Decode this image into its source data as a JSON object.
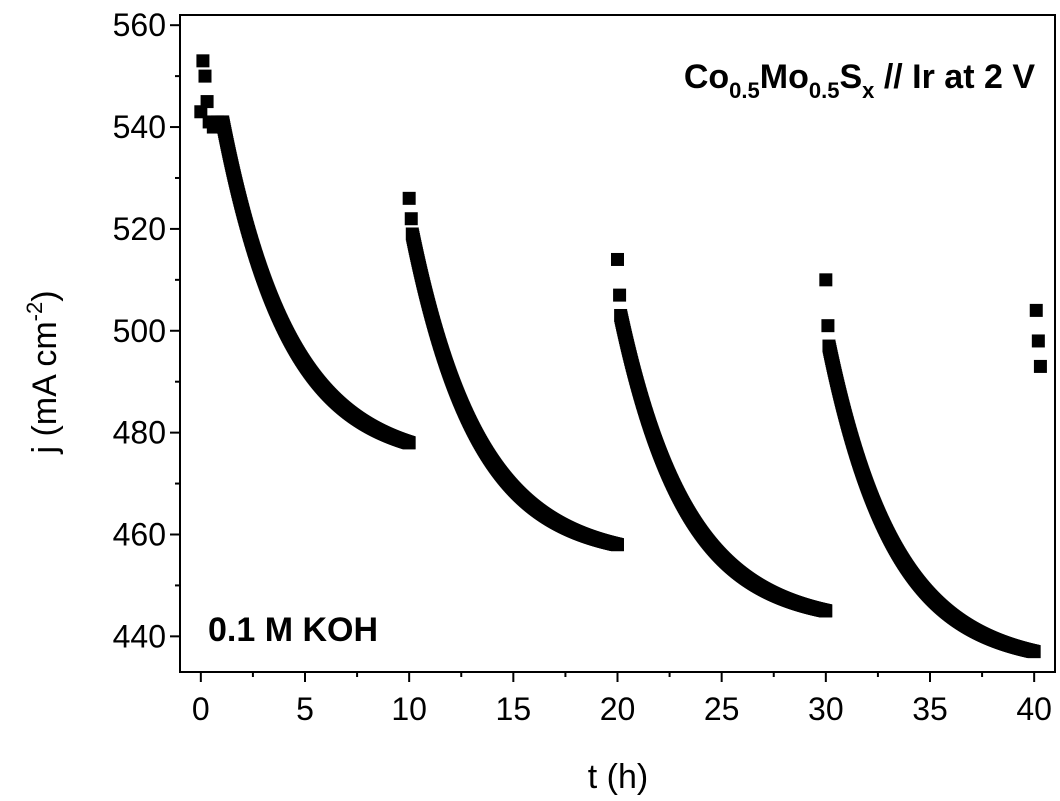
{
  "chart_data": {
    "type": "scatter",
    "xlabel": "t (h)",
    "ylabel": {
      "main": "j (mA cm",
      "sup": "-2",
      "close": ")"
    },
    "xlim": [
      -1,
      41
    ],
    "ylim": [
      433,
      562
    ],
    "xticks": [
      0,
      5,
      10,
      15,
      20,
      25,
      30,
      35,
      40
    ],
    "yticks": [
      440,
      460,
      480,
      500,
      520,
      540,
      560
    ],
    "grid": false,
    "marker": "square",
    "marker_color": "#000000",
    "annotations": {
      "catalyst": {
        "color": "#ff0000",
        "parts": [
          "Co",
          "0.5",
          "Mo",
          "0.5",
          "S",
          "x",
          " // Ir at 2 V"
        ]
      },
      "electrolyte": {
        "text": "0.1 M KOH",
        "color": "#ff0000"
      }
    },
    "segments": [
      {
        "t_start": 0,
        "t_end": 10,
        "j_points": [
          [
            0,
            543
          ],
          [
            0.1,
            553
          ],
          [
            0.2,
            550
          ],
          [
            0.3,
            545
          ],
          [
            0.4,
            541
          ],
          [
            0.6,
            540
          ],
          [
            0.8,
            541
          ],
          [
            1.0,
            541
          ]
        ],
        "j_start": 541,
        "j_end": 478
      },
      {
        "t_start": 10,
        "t_end": 20,
        "j_points": [
          [
            10.0,
            526
          ],
          [
            10.1,
            522
          ]
        ],
        "j_start": 519,
        "j_end": 458
      },
      {
        "t_start": 20,
        "t_end": 30,
        "j_points": [
          [
            20.0,
            514
          ],
          [
            20.1,
            507
          ]
        ],
        "j_start": 503,
        "j_end": 445
      },
      {
        "t_start": 30,
        "t_end": 40,
        "j_points": [
          [
            30.0,
            510
          ],
          [
            30.1,
            501
          ]
        ],
        "j_start": 497,
        "j_end": 437
      },
      {
        "t_start": 40,
        "t_end": 40,
        "j_points": [
          [
            40.1,
            504
          ],
          [
            40.2,
            498
          ],
          [
            40.3,
            493
          ]
        ],
        "j_start": null,
        "j_end": null
      }
    ]
  }
}
